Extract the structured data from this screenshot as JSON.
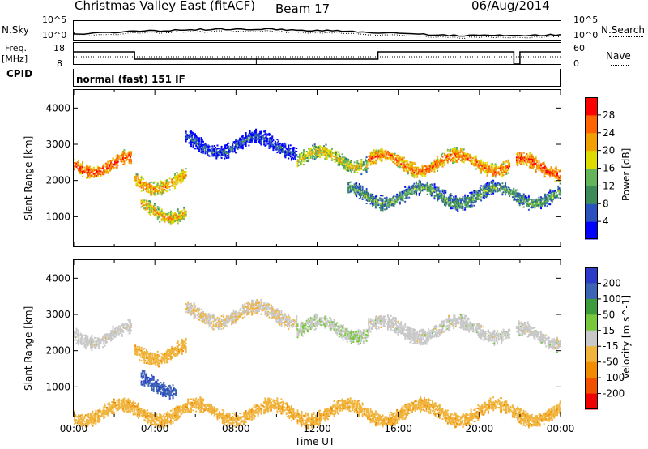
{
  "header": {
    "station": "Christmas Valley East (fitACF)",
    "beam": "Beam 17",
    "date": "06/Aug/2014"
  },
  "noise_panel": {
    "left_label": "N.Sky",
    "right_label": "N.Search",
    "left_ticks": [
      "10^5",
      "10^0"
    ],
    "right_ticks": [
      "10^5",
      "10^0"
    ]
  },
  "freq_panel": {
    "left_label_line1": "Freq.",
    "left_label_line2": "[MHz]",
    "left_ticks": [
      "18",
      "8"
    ],
    "right_label": "Nave",
    "right_ticks": [
      "60",
      "0"
    ]
  },
  "cpid": {
    "label": "CPID",
    "value": "normal (fast) 151 IF"
  },
  "colors": {
    "power_scale": [
      "#0000ff",
      "#2a52be",
      "#3c8c5a",
      "#64b45a",
      "#dcdc00",
      "#f0a000",
      "#ff6400",
      "#ff0000"
    ],
    "velocity_scale": [
      "#2a3cc8",
      "#3c64b4",
      "#3c9c3c",
      "#78c83c",
      "#c8c8c8",
      "#f0b43c",
      "#f08c00",
      "#f05000",
      "#f00000"
    ]
  },
  "chart_data": [
    {
      "type": "heatmap",
      "title": "",
      "ylabel": "Slant Range [km]",
      "xlabel": "",
      "ylim": [
        180,
        4500
      ],
      "yticks": [
        "1000",
        "2000",
        "3000",
        "4000"
      ],
      "x_ticks": [
        "00:00",
        "04:00",
        "08:00",
        "12:00",
        "16:00",
        "20:00",
        "00:00"
      ],
      "colorbar": {
        "label": "Power [dB]",
        "ticks": [
          "4",
          "8",
          "12",
          "16",
          "20",
          "24",
          "28"
        ],
        "range": [
          0,
          30
        ]
      },
      "bands": [
        {
          "start_h": 0.0,
          "end_h": 2.8,
          "range_km": 2450,
          "level_db": 26
        },
        {
          "start_h": 3.0,
          "end_h": 5.5,
          "range_km": 2000,
          "level_db": 22
        },
        {
          "start_h": 5.5,
          "end_h": 11.0,
          "range_km": 3000,
          "level_db": 6
        },
        {
          "start_h": 11.0,
          "end_h": 14.5,
          "range_km": 2600,
          "level_db": 18
        },
        {
          "start_h": 14.5,
          "end_h": 21.5,
          "range_km": 2500,
          "level_db": 24
        },
        {
          "start_h": 21.8,
          "end_h": 24.0,
          "range_km": 2400,
          "level_db": 26
        },
        {
          "start_h": 3.3,
          "end_h": 5.5,
          "range_km": 1200,
          "level_db": 20
        },
        {
          "start_h": 13.5,
          "end_h": 24.0,
          "range_km": 1600,
          "level_db": 12
        }
      ]
    },
    {
      "type": "heatmap",
      "title": "",
      "ylabel": "Slant Range [km]",
      "xlabel": "Time UT",
      "ylim": [
        180,
        4500
      ],
      "yticks": [
        "1000",
        "2000",
        "3000",
        "4000"
      ],
      "x_ticks": [
        "00:00",
        "04:00",
        "08:00",
        "12:00",
        "16:00",
        "20:00",
        "00:00"
      ],
      "colorbar": {
        "label": "Velocity [m s^-1]",
        "ticks": [
          "200",
          "100",
          "50",
          "15",
          "-15",
          "-50",
          "-100",
          "-200"
        ],
        "range": [
          -250,
          250
        ]
      },
      "bands": [
        {
          "start_h": 0.0,
          "end_h": 2.8,
          "range_km": 2450,
          "velocity": 0
        },
        {
          "start_h": 3.0,
          "end_h": 5.5,
          "range_km": 2000,
          "velocity": -60
        },
        {
          "start_h": 5.5,
          "end_h": 11.0,
          "range_km": 3000,
          "velocity": -20
        },
        {
          "start_h": 11.0,
          "end_h": 14.5,
          "range_km": 2600,
          "velocity": 20
        },
        {
          "start_h": 14.5,
          "end_h": 21.5,
          "range_km": 2600,
          "velocity": 0
        },
        {
          "start_h": 21.8,
          "end_h": 24.0,
          "range_km": 2400,
          "velocity": 0
        },
        {
          "start_h": 3.3,
          "end_h": 5.0,
          "range_km": 1100,
          "velocity": 180
        },
        {
          "start_h": 0.0,
          "end_h": 24.0,
          "range_km": 300,
          "velocity": -60
        }
      ]
    }
  ]
}
